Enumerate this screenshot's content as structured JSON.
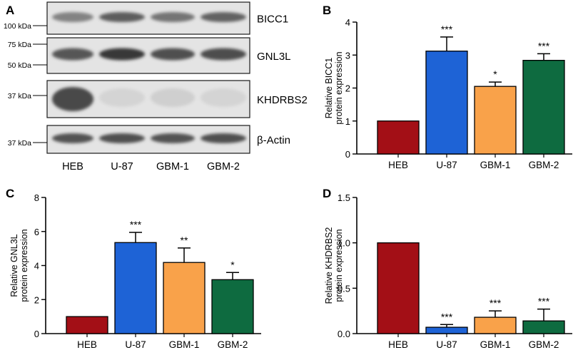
{
  "panel_letters": [
    "A",
    "B",
    "C",
    "D"
  ],
  "western_blot": {
    "lanes": [
      "HEB",
      "U-87",
      "GBM-1",
      "GBM-2"
    ],
    "blots": [
      {
        "protein": "BICC1",
        "markers": [
          "100 kDa"
        ],
        "intensity": [
          0.55,
          0.75,
          0.62,
          0.72
        ]
      },
      {
        "protein": "GNL3L",
        "markers": [
          "75 kDa",
          "50 kDa"
        ],
        "intensity": [
          0.78,
          0.95,
          0.82,
          0.83
        ]
      },
      {
        "protein": "KHDRBS2",
        "markers": [
          "37 kDa"
        ],
        "intensity": [
          0.85,
          0.12,
          0.15,
          0.12
        ]
      },
      {
        "protein": "β-Actin",
        "markers": [
          "37 kDa"
        ],
        "intensity": [
          0.8,
          0.82,
          0.8,
          0.82
        ]
      }
    ]
  },
  "chart_data": [
    {
      "panel": "B",
      "type": "bar",
      "categories": [
        "HEB",
        "U-87",
        "GBM-1",
        "GBM-2"
      ],
      "values": [
        1.0,
        3.12,
        2.05,
        2.84
      ],
      "errors": [
        0,
        0.43,
        0.13,
        0.2
      ],
      "significance": [
        "",
        "***",
        "*",
        "***"
      ],
      "ylabel": [
        "Relative BICC1",
        "protein expression"
      ],
      "ylim": [
        0,
        4
      ],
      "yticks": [
        0,
        1,
        2,
        3,
        4
      ],
      "ytick_labels": [
        "0",
        "1",
        "2",
        "3",
        "4"
      ],
      "colors": [
        "#a30f16",
        "#1e63d6",
        "#f9a24a",
        "#0e6b40"
      ]
    },
    {
      "panel": "C",
      "type": "bar",
      "categories": [
        "HEB",
        "U-87",
        "GBM-1",
        "GBM-2"
      ],
      "values": [
        1.0,
        5.35,
        4.18,
        3.17
      ],
      "errors": [
        0,
        0.6,
        0.85,
        0.42
      ],
      "significance": [
        "",
        "***",
        "**",
        "*"
      ],
      "ylabel": [
        "Relative GNL3L",
        "protein expression"
      ],
      "ylim": [
        0,
        8
      ],
      "yticks": [
        0,
        2,
        4,
        6,
        8
      ],
      "ytick_labels": [
        "0",
        "2",
        "4",
        "6",
        "8"
      ],
      "colors": [
        "#a30f16",
        "#1e63d6",
        "#f9a24a",
        "#0e6b40"
      ]
    },
    {
      "panel": "D",
      "type": "bar",
      "categories": [
        "HEB",
        "U-87",
        "GBM-1",
        "GBM-2"
      ],
      "values": [
        1.0,
        0.07,
        0.18,
        0.14
      ],
      "errors": [
        0,
        0.03,
        0.07,
        0.13
      ],
      "significance": [
        "",
        "***",
        "***",
        "***"
      ],
      "ylabel": [
        "Relative KHDRBS2",
        "protein expression"
      ],
      "ylim": [
        0,
        1.5
      ],
      "yticks": [
        0,
        0.5,
        1.0,
        1.5
      ],
      "ytick_labels": [
        "0.0",
        "0.5",
        "1.0",
        "1.5"
      ],
      "colors": [
        "#a30f16",
        "#1e63d6",
        "#f9a24a",
        "#0e6b40"
      ]
    }
  ]
}
